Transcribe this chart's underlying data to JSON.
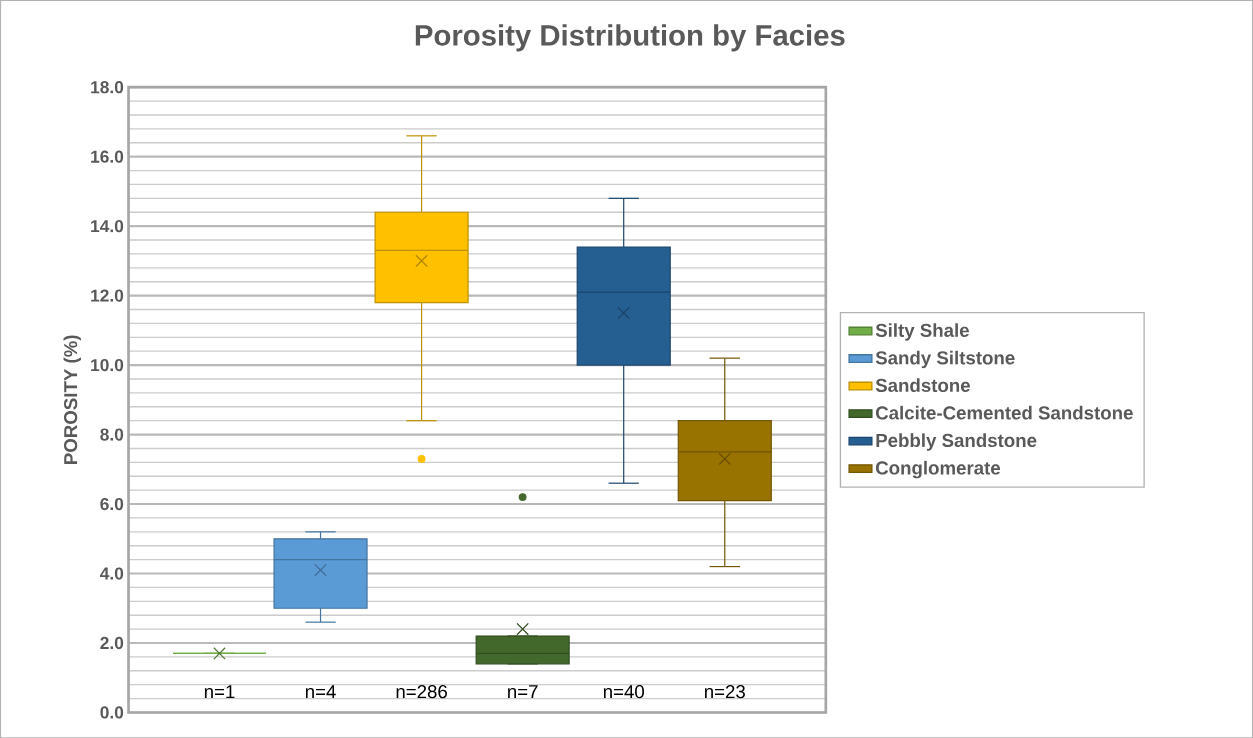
{
  "chart_data": {
    "type": "box",
    "title": "Porosity Distribution by Facies",
    "ylabel": "POROSITY (%)",
    "categories": [
      null
    ],
    "series": [
      {
        "name": "Silty Shale",
        "color": "#70ad47",
        "boxes": [
          {
            "low": 1.7,
            "q1": 1.7,
            "median": 1.7,
            "q3": 1.7,
            "high": 1.7,
            "mean": 1.7
          }
        ]
      },
      {
        "name": "Sandy Siltstone",
        "color": "#5b9bd5",
        "boxes": [
          {
            "low": 2.6,
            "q1": 3.0,
            "median": 4.4,
            "q3": 5.0,
            "high": 5.2,
            "mean": 4.1
          }
        ]
      },
      {
        "name": "Sandstone",
        "color": "#ffc000",
        "boxes": [
          {
            "low": 8.4,
            "q1": 11.8,
            "median": 13.3,
            "q3": 14.4,
            "high": 16.6,
            "mean": 13.0,
            "outliers": [
              7.3
            ]
          }
        ]
      },
      {
        "name": "Calcite-Cemented Sandstone",
        "color": "#43682b",
        "boxes": [
          {
            "low": 1.4,
            "q1": 1.4,
            "median": 1.7,
            "q3": 2.2,
            "high": 2.2,
            "mean": 2.4,
            "outliers": [
              6.2
            ]
          }
        ]
      },
      {
        "name": "Pebbly Sandstone",
        "color": "#255e91",
        "boxes": [
          {
            "low": 6.6,
            "q1": 10.0,
            "median": 12.1,
            "q3": 13.4,
            "high": 14.8,
            "mean": 11.5
          }
        ]
      },
      {
        "name": "Conglomerate",
        "color": "#997300",
        "boxes": [
          {
            "low": 4.2,
            "q1": 6.1,
            "median": 7.5,
            "q3": 8.4,
            "high": 10.2,
            "mean": 7.3
          }
        ]
      }
    ],
    "annotations": [
      "n=1",
      "n=4",
      "n=286",
      "n=7",
      "n=40",
      "n=23"
    ],
    "ylim": [
      0,
      18
    ],
    "yticks": [
      {
        "value": 0,
        "label": "0.0"
      },
      {
        "value": 2,
        "label": "2.0"
      },
      {
        "value": 4,
        "label": "4.0"
      },
      {
        "value": 6,
        "label": "6.0"
      },
      {
        "value": 8,
        "label": "8.0"
      },
      {
        "value": 10,
        "label": "10.0"
      },
      {
        "value": 12,
        "label": "12.0"
      },
      {
        "value": 14,
        "label": "14.0"
      },
      {
        "value": 16,
        "label": "16.0"
      },
      {
        "value": 18,
        "label": "18.0"
      }
    ],
    "grid": "y",
    "legend": "right",
    "tick_labels": "y"
  }
}
